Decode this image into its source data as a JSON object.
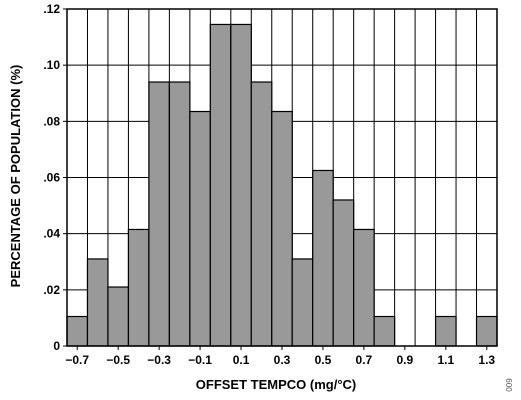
{
  "chart_data": {
    "type": "bar",
    "title": "",
    "xlabel": "OFFSET TEMPCO (mg/°C)",
    "ylabel": "PERCENTAGE OF POPULATION (%)",
    "x_bin_centers": [
      -0.7,
      -0.6,
      -0.5,
      -0.4,
      -0.3,
      -0.2,
      -0.1,
      0.0,
      0.1,
      0.2,
      0.3,
      0.4,
      0.5,
      0.6,
      0.7,
      0.8,
      0.9,
      1.0,
      1.1,
      1.2,
      1.3
    ],
    "values": [
      0.0105,
      0.031,
      0.021,
      0.0415,
      0.094,
      0.094,
      0.0835,
      0.1145,
      0.1145,
      0.094,
      0.0835,
      0.031,
      0.0625,
      0.052,
      0.0415,
      0.0105,
      0,
      0,
      0.0105,
      0,
      0.0105
    ],
    "bar_color": "#999999",
    "xlim": [
      -0.75,
      1.35
    ],
    "ylim": [
      0,
      0.12
    ],
    "x_ticks": [
      -0.7,
      -0.5,
      -0.3,
      -0.1,
      0.1,
      0.3,
      0.5,
      0.7,
      0.9,
      1.1,
      1.3
    ],
    "x_tick_labels": [
      "−0.7",
      "−0.5",
      "−0.3",
      "−0.1",
      "0.1",
      "0.3",
      "0.5",
      "0.7",
      "0.9",
      "1.1",
      "1.3"
    ],
    "y_ticks": [
      0,
      0.02,
      0.04,
      0.06,
      0.08,
      0.1,
      0.12
    ],
    "y_tick_labels": [
      "0",
      ".02",
      ".04",
      ".06",
      ".08",
      ".10",
      ".12"
    ],
    "x_grid_lines": [
      -0.65,
      -0.55,
      -0.45,
      -0.35,
      -0.25,
      -0.15,
      -0.05,
      0.05,
      0.15,
      0.25,
      0.35,
      0.45,
      0.55,
      0.65,
      0.75,
      0.85,
      0.95,
      1.05,
      1.15,
      1.25
    ],
    "grid": true,
    "legend": "none"
  },
  "figure_id": "009"
}
